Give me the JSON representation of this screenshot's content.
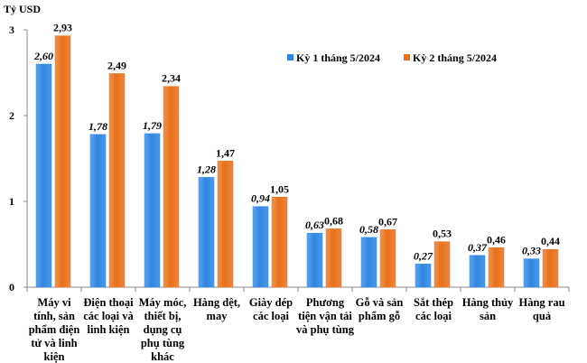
{
  "chart_data": {
    "type": "bar",
    "ylabel": "Tỷ USD",
    "ylim": [
      0,
      3
    ],
    "yticks": [
      "0",
      "1",
      "2",
      "3"
    ],
    "grid": false,
    "legend_position": "top-right",
    "categories": [
      "Máy vi tính, sản phẩm điện tử và linh kiện",
      "Điện thoại các loại và linh kiện",
      "Máy móc, thiết bị, dụng cụ phụ tùng khác",
      "Hàng dệt, may",
      "Giày dép các loại",
      "Phương tiện vận tải và phụ tùng",
      "Gỗ và sản phẩm gỗ",
      "Sắt thép các loại",
      "Hàng thủy sản",
      "Hàng rau quả"
    ],
    "series": [
      {
        "name": "Kỳ 1 tháng 5/2024",
        "color": "#2f86e0",
        "values": [
          2.6,
          1.78,
          1.79,
          1.28,
          0.94,
          0.63,
          0.58,
          0.27,
          0.37,
          0.33
        ],
        "labels": [
          "2,60",
          "1,78",
          "1,79",
          "1,28",
          "0,94",
          "0,63",
          "0,58",
          "0,27",
          "0,37",
          "0,33"
        ]
      },
      {
        "name": "Kỳ 2 tháng 5/2024",
        "color": "#e8701a",
        "values": [
          2.93,
          2.49,
          2.34,
          1.47,
          1.05,
          0.68,
          0.67,
          0.53,
          0.46,
          0.44
        ],
        "labels": [
          "2,93",
          "2,49",
          "2,34",
          "1,47",
          "1,05",
          "0,68",
          "0,67",
          "0,53",
          "0,46",
          "0,44"
        ]
      }
    ]
  }
}
